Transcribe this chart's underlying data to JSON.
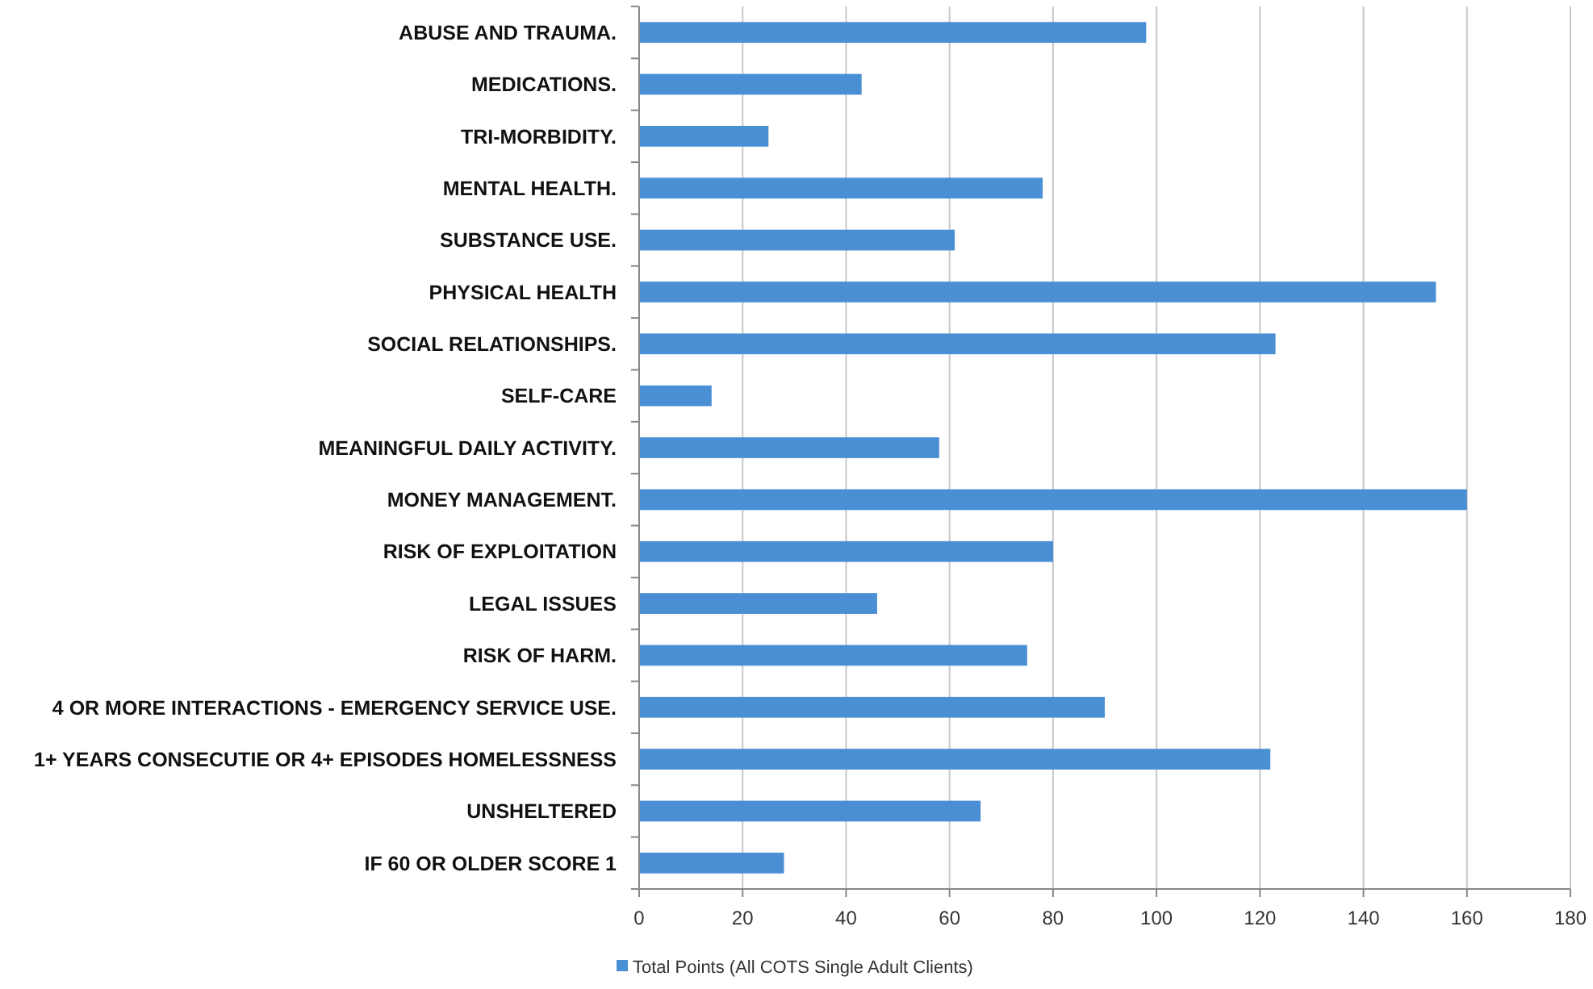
{
  "chart_data": {
    "type": "bar",
    "orientation": "horizontal",
    "categories": [
      "ABUSE AND TRAUMA.",
      "MEDICATIONS.",
      "TRI-MORBIDITY.",
      "MENTAL HEALTH.",
      "SUBSTANCE USE.",
      "PHYSICAL HEALTH",
      "SOCIAL RELATIONSHIPS.",
      "SELF-CARE",
      "MEANINGFUL DAILY ACTIVITY.",
      "MONEY MANAGEMENT.",
      "RISK OF EXPLOITATION",
      "LEGAL ISSUES",
      "RISK OF HARM.",
      "4 OR MORE INTERACTIONS - EMERGENCY SERVICE USE.",
      "1+ YEARS CONSECUTIE OR 4+ EPISODES HOMELESSNESS",
      "UNSHELTERED",
      "IF 60 OR OLDER SCORE 1"
    ],
    "series": [
      {
        "name": "Total Points (All COTS Single Adult Clients)",
        "color": "#4a8fd4",
        "values": [
          98,
          43,
          25,
          78,
          61,
          154,
          123,
          14,
          58,
          160,
          80,
          46,
          75,
          90,
          122,
          66,
          28
        ]
      }
    ],
    "xlim": [
      0,
      180
    ],
    "xticks": [
      0,
      20,
      40,
      60,
      80,
      100,
      120,
      140,
      160,
      180
    ],
    "grid": "x",
    "legend": "bottom"
  }
}
